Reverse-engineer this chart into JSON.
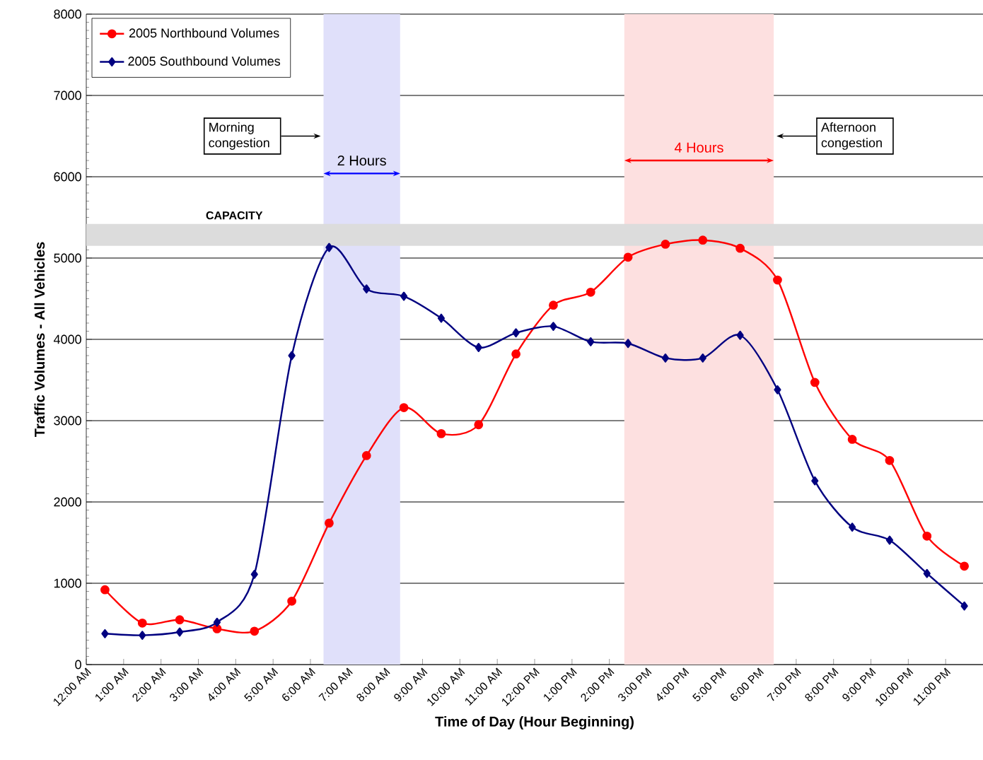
{
  "chart_data": {
    "type": "line",
    "xlabel": "Time of Day (Hour Beginning)",
    "ylabel": "Traffic Volumes - All Vehicles",
    "x": [
      0.5,
      1.5,
      2.5,
      3.5,
      4.5,
      5.5,
      6.5,
      7.5,
      8.5,
      9.5,
      10.5,
      11.5,
      12.5,
      13.5,
      14.5,
      15.5,
      16.5,
      17.5,
      18.5,
      19.5,
      20.5,
      21.5,
      22.5,
      23.5
    ],
    "series": [
      {
        "name": "2005 Northbound Volumes",
        "color": "#ff0000",
        "marker": "circle",
        "values": [
          920,
          510,
          550,
          440,
          410,
          780,
          1740,
          2570,
          3160,
          2840,
          2950,
          3820,
          4420,
          4580,
          5010,
          5170,
          5220,
          5120,
          4730,
          3470,
          2770,
          2510,
          1580,
          1210
        ]
      },
      {
        "name": "2005 Southbound Volumes",
        "color": "#000080",
        "marker": "diamond",
        "values": [
          380,
          360,
          400,
          520,
          1110,
          3800,
          5130,
          4620,
          4530,
          4260,
          3900,
          4080,
          4160,
          3970,
          3950,
          3770,
          3770,
          4050,
          3380,
          2260,
          1690,
          1530,
          1120,
          720
        ]
      }
    ],
    "xlim": [
      0,
      24
    ],
    "xticks": [
      {
        "value": 0,
        "label": "12:00 AM"
      },
      {
        "value": 1,
        "label": "1:00 AM"
      },
      {
        "value": 2,
        "label": "2:00 AM"
      },
      {
        "value": 3,
        "label": "3:00 AM"
      },
      {
        "value": 4,
        "label": "4:00 AM"
      },
      {
        "value": 5,
        "label": "5:00 AM"
      },
      {
        "value": 6,
        "label": "6:00 AM"
      },
      {
        "value": 7,
        "label": "7:00 AM"
      },
      {
        "value": 8,
        "label": "8:00 AM"
      },
      {
        "value": 9,
        "label": "9:00 AM"
      },
      {
        "value": 10,
        "label": "10:00 AM"
      },
      {
        "value": 11,
        "label": "11:00 AM"
      },
      {
        "value": 12,
        "label": "12:00 PM"
      },
      {
        "value": 13,
        "label": "1:00 PM"
      },
      {
        "value": 14,
        "label": "2:00 PM"
      },
      {
        "value": 15,
        "label": "3:00 PM"
      },
      {
        "value": 16,
        "label": "4:00 PM"
      },
      {
        "value": 17,
        "label": "5:00 PM"
      },
      {
        "value": 18,
        "label": "6:00 PM"
      },
      {
        "value": 19,
        "label": "7:00 PM"
      },
      {
        "value": 20,
        "label": "8:00 PM"
      },
      {
        "value": 21,
        "label": "9:00 PM"
      },
      {
        "value": 22,
        "label": "10:00 PM"
      },
      {
        "value": 23,
        "label": "11:00 PM"
      }
    ],
    "ylim": [
      0,
      8000
    ],
    "yticks": [
      0,
      1000,
      2000,
      3000,
      4000,
      5000,
      6000,
      7000,
      8000
    ],
    "grid": "y",
    "legend": "top left",
    "bands": [
      {
        "axis": "x",
        "from": 6.35,
        "to": 8.4,
        "label": "2 Hours",
        "color": "#e0e0fa"
      },
      {
        "axis": "x",
        "from": 14.4,
        "to": 18.4,
        "label": "4 Hours",
        "color": "#fde0e0"
      },
      {
        "axis": "y",
        "from": 5150,
        "to": 5420,
        "label": "CAPACITY",
        "color": "#dcdcdc"
      }
    ],
    "annotations": [
      "Morning congestion",
      "Afternoon congestion"
    ]
  }
}
